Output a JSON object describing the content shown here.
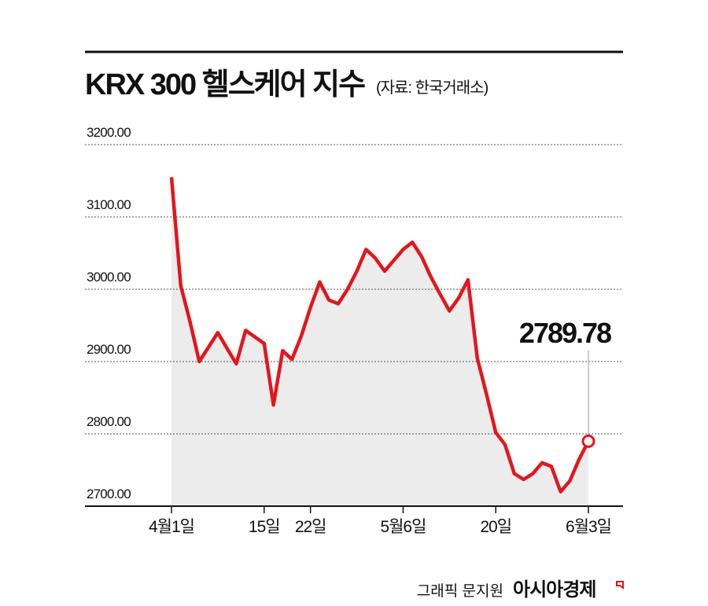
{
  "chart_data": {
    "type": "line",
    "title": "KRX 300 헬스케어 지수",
    "subtitle": "(자료: 한국거래소)",
    "categories": [
      "4월1일",
      null,
      null,
      null,
      null,
      null,
      null,
      null,
      null,
      null,
      "15일",
      null,
      null,
      null,
      null,
      "22일",
      null,
      null,
      null,
      null,
      null,
      null,
      null,
      null,
      null,
      "5월6일",
      null,
      null,
      null,
      null,
      null,
      null,
      null,
      null,
      null,
      "20일",
      null,
      null,
      null,
      null,
      null,
      null,
      null,
      null,
      null,
      "6월3일"
    ],
    "values": [
      3155,
      3005,
      2955,
      2900,
      2920,
      2940,
      2918,
      2897,
      2943,
      2934,
      2925,
      2840,
      2915,
      2903,
      2935,
      2975,
      3010,
      2985,
      2980,
      3000,
      3025,
      3055,
      3043,
      3025,
      3040,
      3055,
      3065,
      3045,
      3017,
      2993,
      2970,
      2988,
      3013,
      2905,
      2855,
      2802,
      2785,
      2745,
      2737,
      2745,
      2760,
      2755,
      2720,
      2735,
      2765,
      2789.78
    ],
    "color": "#e3161d",
    "area_color": "#ececec",
    "ylim": [
      2700,
      3200
    ],
    "yticks": [
      {
        "value": 2700,
        "label": "2700.00"
      },
      {
        "value": 2800,
        "label": "2800.00"
      },
      {
        "value": 2900,
        "label": "2900.00"
      },
      {
        "value": 3000,
        "label": "3000.00"
      },
      {
        "value": 3100,
        "label": "3100.00"
      },
      {
        "value": 3200,
        "label": "3200.00"
      }
    ],
    "grid": true,
    "credit": "그래픽 문지원",
    "publisher": "아시아경제"
  }
}
